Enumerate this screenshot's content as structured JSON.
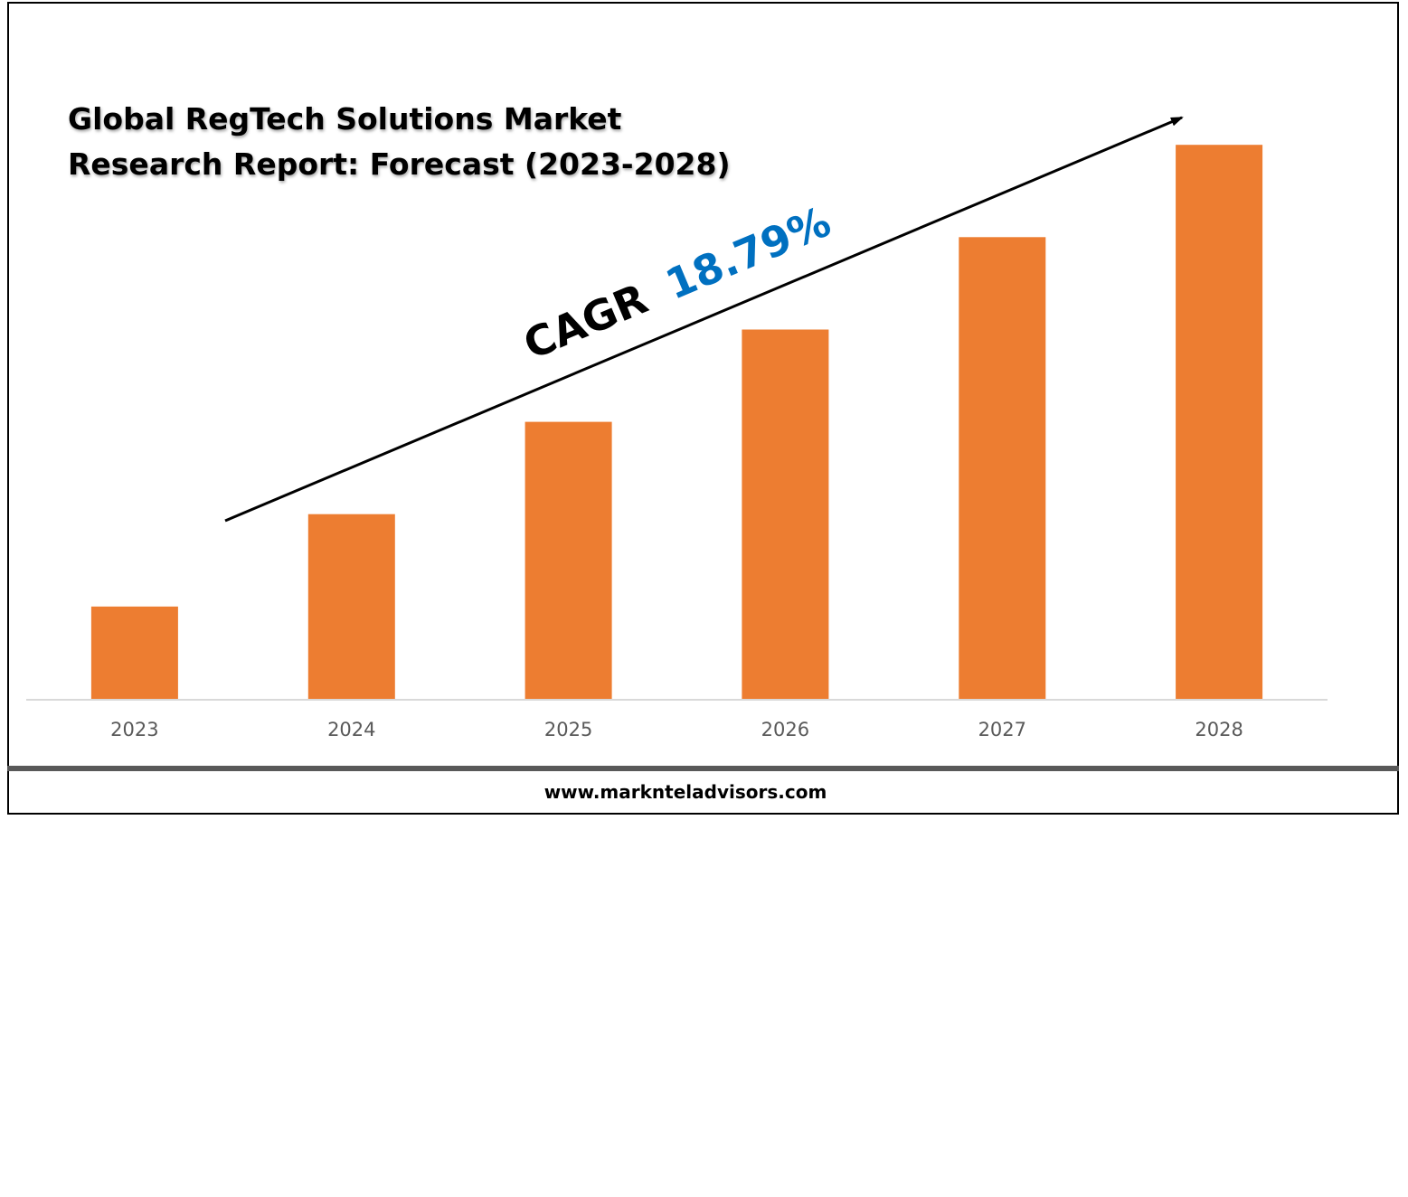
{
  "chart_data": {
    "type": "bar",
    "title_lines": [
      "Global RegTech Solutions Market",
      "Research Report: Forecast (2023-2028)"
    ],
    "categories": [
      "2023",
      "2024",
      "2025",
      "2026",
      "2027",
      "2028"
    ],
    "series": [
      {
        "values": [
          1,
          2,
          3,
          4,
          5,
          6
        ]
      }
    ],
    "ylim": [
      0,
      6.1
    ],
    "y_axis_visible": false,
    "grid": false,
    "legend": "none",
    "annotation": {
      "label": "CAGR",
      "value": "18.79%",
      "arrow": "rising"
    },
    "bar_color": "#ED7D31",
    "cagr_value_color": "#0070C0"
  },
  "footer": {
    "website": "www.marknteladvisors.com"
  }
}
